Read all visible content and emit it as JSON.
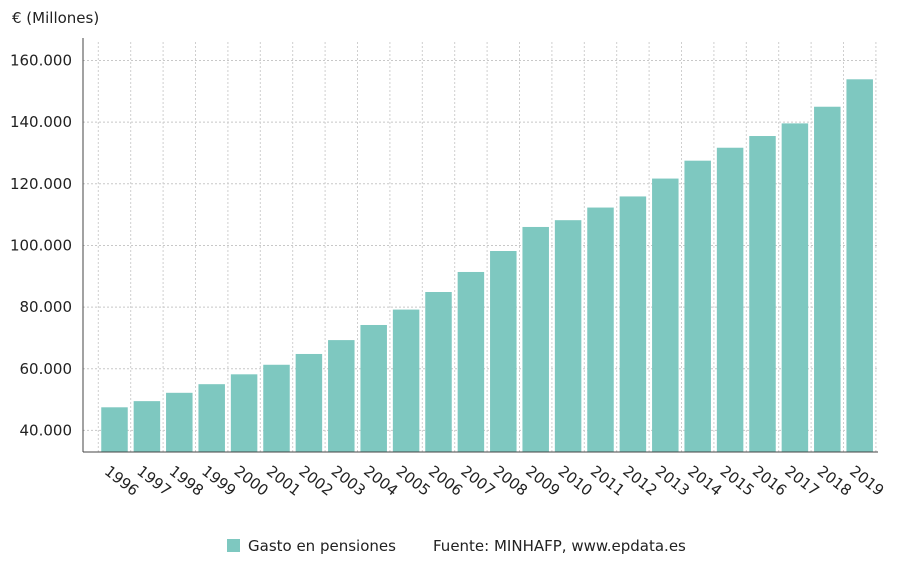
{
  "chart_data": {
    "type": "bar",
    "unit_label": "€ (Millones)",
    "categories": [
      "1996",
      "1997",
      "1998",
      "1999",
      "2000",
      "2001",
      "2002",
      "2003",
      "2004",
      "2005",
      "2006",
      "2007",
      "2008",
      "2009",
      "2010",
      "2011",
      "2012",
      "2013",
      "2014",
      "2015",
      "2016",
      "2017",
      "2018",
      "2019"
    ],
    "series": [
      {
        "name": "Gasto en pensiones",
        "color": "#7ec8c0",
        "values": [
          47500,
          49500,
          52200,
          55000,
          58200,
          61300,
          64800,
          69300,
          74200,
          79200,
          84900,
          91400,
          98200,
          106000,
          108200,
          112300,
          115900,
          121700,
          127500,
          131700,
          135500,
          139600,
          145000,
          153900
        ]
      }
    ],
    "ylim": [
      33000,
      166000
    ],
    "yticks": [
      40000,
      60000,
      80000,
      100000,
      120000,
      140000,
      160000
    ],
    "ytick_labels": [
      "40.000",
      "60.000",
      "80.000",
      "100.000",
      "120.000",
      "140.000",
      "160.000"
    ],
    "grid": true,
    "legend_position": "bottom",
    "source": "Fuente: MINHAFP, www.epdata.es"
  }
}
